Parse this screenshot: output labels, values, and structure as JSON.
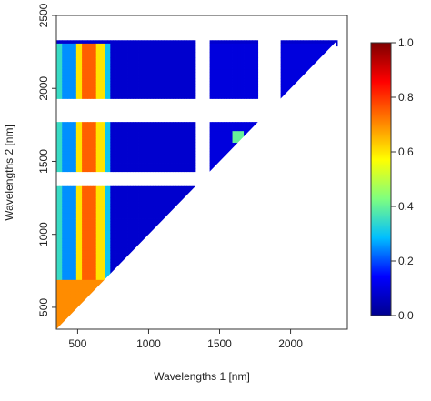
{
  "chart_data": {
    "type": "heatmap",
    "title": "",
    "xlabel": "Wavelengths 1 [nm]",
    "ylabel": "Wavelengths 2 [nm]",
    "xlim": [
      350,
      2400
    ],
    "ylim": [
      350,
      2500
    ],
    "xticks": [
      500,
      1000,
      1500,
      2000
    ],
    "yticks": [
      500,
      1000,
      1500,
      2000,
      2500
    ],
    "colorbar": {
      "range": [
        0,
        1
      ],
      "ticks": [
        "0.0",
        "0.2",
        "0.4",
        "0.6",
        "0.8",
        "1.0"
      ],
      "colormap": [
        "#00008f",
        "#0000ff",
        "#00bfff",
        "#7fff7f",
        "#ffff00",
        "#ff7f00",
        "#ff0000",
        "#7f0000"
      ]
    },
    "domain": {
      "wavelength_range": [
        350,
        2320
      ],
      "upper_triangle": true,
      "masked_bands_nm": [
        [
          1340,
          1420
        ],
        [
          1780,
          1920
        ]
      ]
    },
    "regions": [
      {
        "x_range": [
          350,
          390
        ],
        "y_range": [
          350,
          2320
        ],
        "value": 0.35
      },
      {
        "x_range": [
          390,
          500
        ],
        "y_range": [
          350,
          2320
        ],
        "value": 0.25
      },
      {
        "x_range": [
          500,
          540
        ],
        "y_range": [
          350,
          2320
        ],
        "value": 0.6
      },
      {
        "x_range": [
          540,
          640
        ],
        "y_range": [
          350,
          2320
        ],
        "value": 0.75
      },
      {
        "x_range": [
          640,
          690
        ],
        "y_range": [
          350,
          2320
        ],
        "value": 0.6
      },
      {
        "x_range": [
          690,
          730
        ],
        "y_range": [
          350,
          2320
        ],
        "value": 0.3
      },
      {
        "x_range": [
          730,
          1340
        ],
        "y_range": [
          350,
          2320
        ],
        "value": 0.08
      },
      {
        "x_range": [
          1420,
          2320
        ],
        "y_range": [
          350,
          2320
        ],
        "value": 0.1
      },
      {
        "x_range": [
          350,
          700
        ],
        "y_range": [
          350,
          700
        ],
        "value": 0.7
      },
      {
        "x_range": [
          1600,
          1680
        ],
        "y_range": [
          1640,
          1720
        ],
        "value": 0.4
      }
    ]
  }
}
